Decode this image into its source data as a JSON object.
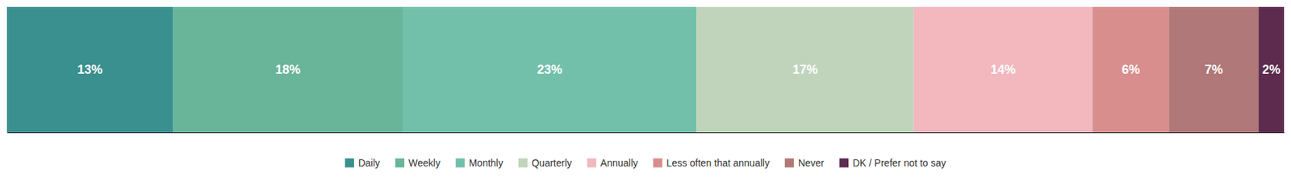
{
  "chart_data": {
    "type": "bar",
    "orientation": "horizontal",
    "stacked": true,
    "data_labels": true,
    "tick_labels": false,
    "legend": "bottom",
    "categories": [
      null
    ],
    "xlim": [
      0,
      100
    ],
    "series": [
      {
        "name": "Daily",
        "color": "#3a8f8f",
        "values": [
          13
        ],
        "value_labels": [
          "13%"
        ]
      },
      {
        "name": "Weekly",
        "color": "#68b59a",
        "values": [
          18
        ],
        "value_labels": [
          "18%"
        ]
      },
      {
        "name": "Monthly",
        "color": "#72c0aa",
        "values": [
          23
        ],
        "value_labels": [
          "23%"
        ]
      },
      {
        "name": "Quarterly",
        "color": "#c0d4bc",
        "values": [
          17
        ],
        "value_labels": [
          "17%"
        ]
      },
      {
        "name": "Annually",
        "color": "#f2b8be",
        "values": [
          14
        ],
        "value_labels": [
          "14%"
        ]
      },
      {
        "name": "Less often that annually",
        "color": "#d98e8e",
        "values": [
          6
        ],
        "value_labels": [
          "6%"
        ]
      },
      {
        "name": "Never",
        "color": "#b07878",
        "values": [
          7
        ],
        "value_labels": [
          "7%"
        ]
      },
      {
        "name": "DK / Prefer not to say",
        "color": "#5c2b4e",
        "values": [
          2
        ],
        "value_labels": [
          "2%"
        ]
      }
    ]
  }
}
